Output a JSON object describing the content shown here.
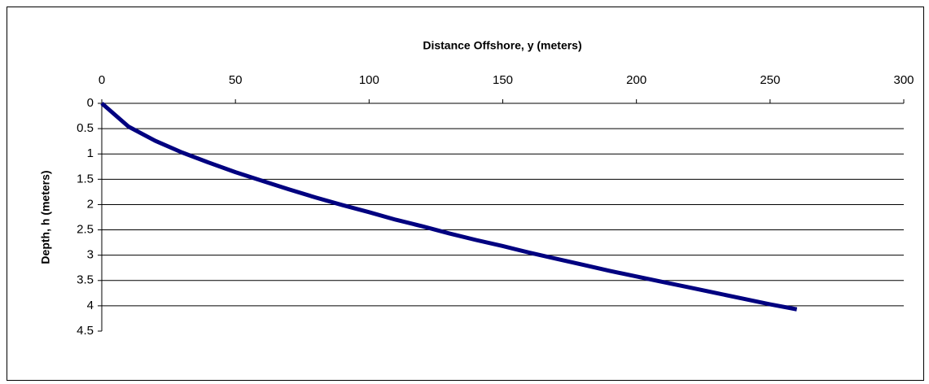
{
  "chart_data": {
    "type": "line",
    "x_label": "Distance Offshore, y (meters)",
    "y_label": "Depth, h (meters)",
    "x": [
      0,
      10,
      20,
      30,
      40,
      50,
      60,
      70,
      80,
      90,
      100,
      110,
      120,
      130,
      140,
      150,
      160,
      170,
      180,
      190,
      200,
      210,
      220,
      230,
      240,
      250,
      260
    ],
    "series": [
      {
        "color": "#000080",
        "values": [
          0,
          0.46,
          0.74,
          0.97,
          1.17,
          1.36,
          1.53,
          1.7,
          1.86,
          2.01,
          2.15,
          2.3,
          2.43,
          2.57,
          2.7,
          2.82,
          2.95,
          3.07,
          3.19,
          3.31,
          3.42,
          3.53,
          3.64,
          3.75,
          3.86,
          3.97,
          4.07
        ]
      }
    ],
    "xlim": [
      0,
      300
    ],
    "xticks": [
      0,
      50,
      100,
      150,
      200,
      250,
      300
    ],
    "ylim": [
      0,
      4.5
    ],
    "yticks": [
      0,
      0.5,
      1,
      1.5,
      2,
      2.5,
      3,
      3.5,
      4,
      4.5
    ],
    "y_inverted": true,
    "x_axis_top": true,
    "grid": true
  }
}
